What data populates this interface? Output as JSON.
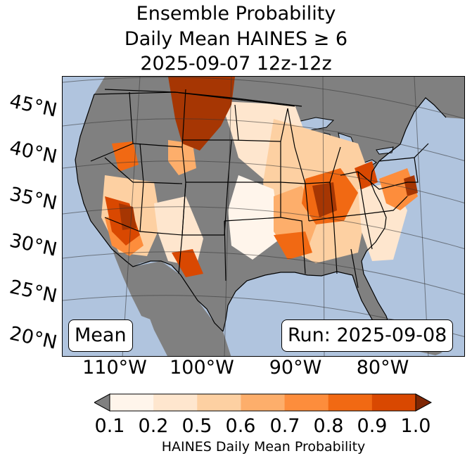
{
  "title": {
    "line1": "Ensemble Probability",
    "line2": "Daily Mean HAINES ≥ 6",
    "line3": "2025-09-07 12z-12z"
  },
  "map": {
    "projection": "Lambert conformal, contiguous United States",
    "background_color": "#b0c4de",
    "land_color": "#808080",
    "lat_labels": [
      "45°N",
      "40°N",
      "35°N",
      "30°N",
      "25°N",
      "20°N"
    ],
    "lon_labels": [
      "110°W",
      "100°W",
      "90°W",
      "80°W"
    ],
    "boxes": {
      "left": "Mean",
      "right": "Run: 2025-09-08"
    },
    "hotspot_regions": [
      {
        "name": "Montana / Wyoming",
        "level": "0.9-1.0"
      },
      {
        "name": "Nevada / Utah",
        "level": "0.7-0.9"
      },
      {
        "name": "Arizona / southern California",
        "level": "0.8-1.0"
      },
      {
        "name": "West Texas / New Mexico border",
        "level": "0.8-0.9"
      },
      {
        "name": "Ohio Valley / Illinois / Indiana / Kentucky",
        "level": "0.8-1.0"
      },
      {
        "name": "Lower Mississippi Valley",
        "level": "0.7-0.9"
      },
      {
        "name": "Mid-Atlantic (Pennsylvania / Maryland / Virginia)",
        "level": "0.7-0.9"
      }
    ]
  },
  "colorbar": {
    "label": "HAINES Daily Mean Probability",
    "ticks": [
      "0.1",
      "0.2",
      "0.5",
      "0.6",
      "0.7",
      "0.8",
      "0.9",
      "1.0"
    ],
    "under_color": "#808080",
    "over_color": "#7f2704",
    "bins": [
      {
        "range": "0.1-0.2",
        "color": "#fff5eb"
      },
      {
        "range": "0.2-0.5",
        "color": "#fee6ce"
      },
      {
        "range": "0.5-0.6",
        "color": "#fdd0a2"
      },
      {
        "range": "0.6-0.7",
        "color": "#fdae6b"
      },
      {
        "range": "0.7-0.8",
        "color": "#fd8d3c"
      },
      {
        "range": "0.8-0.9",
        "color": "#f16913"
      },
      {
        "range": "0.9-1.0",
        "color": "#d94801"
      }
    ]
  }
}
